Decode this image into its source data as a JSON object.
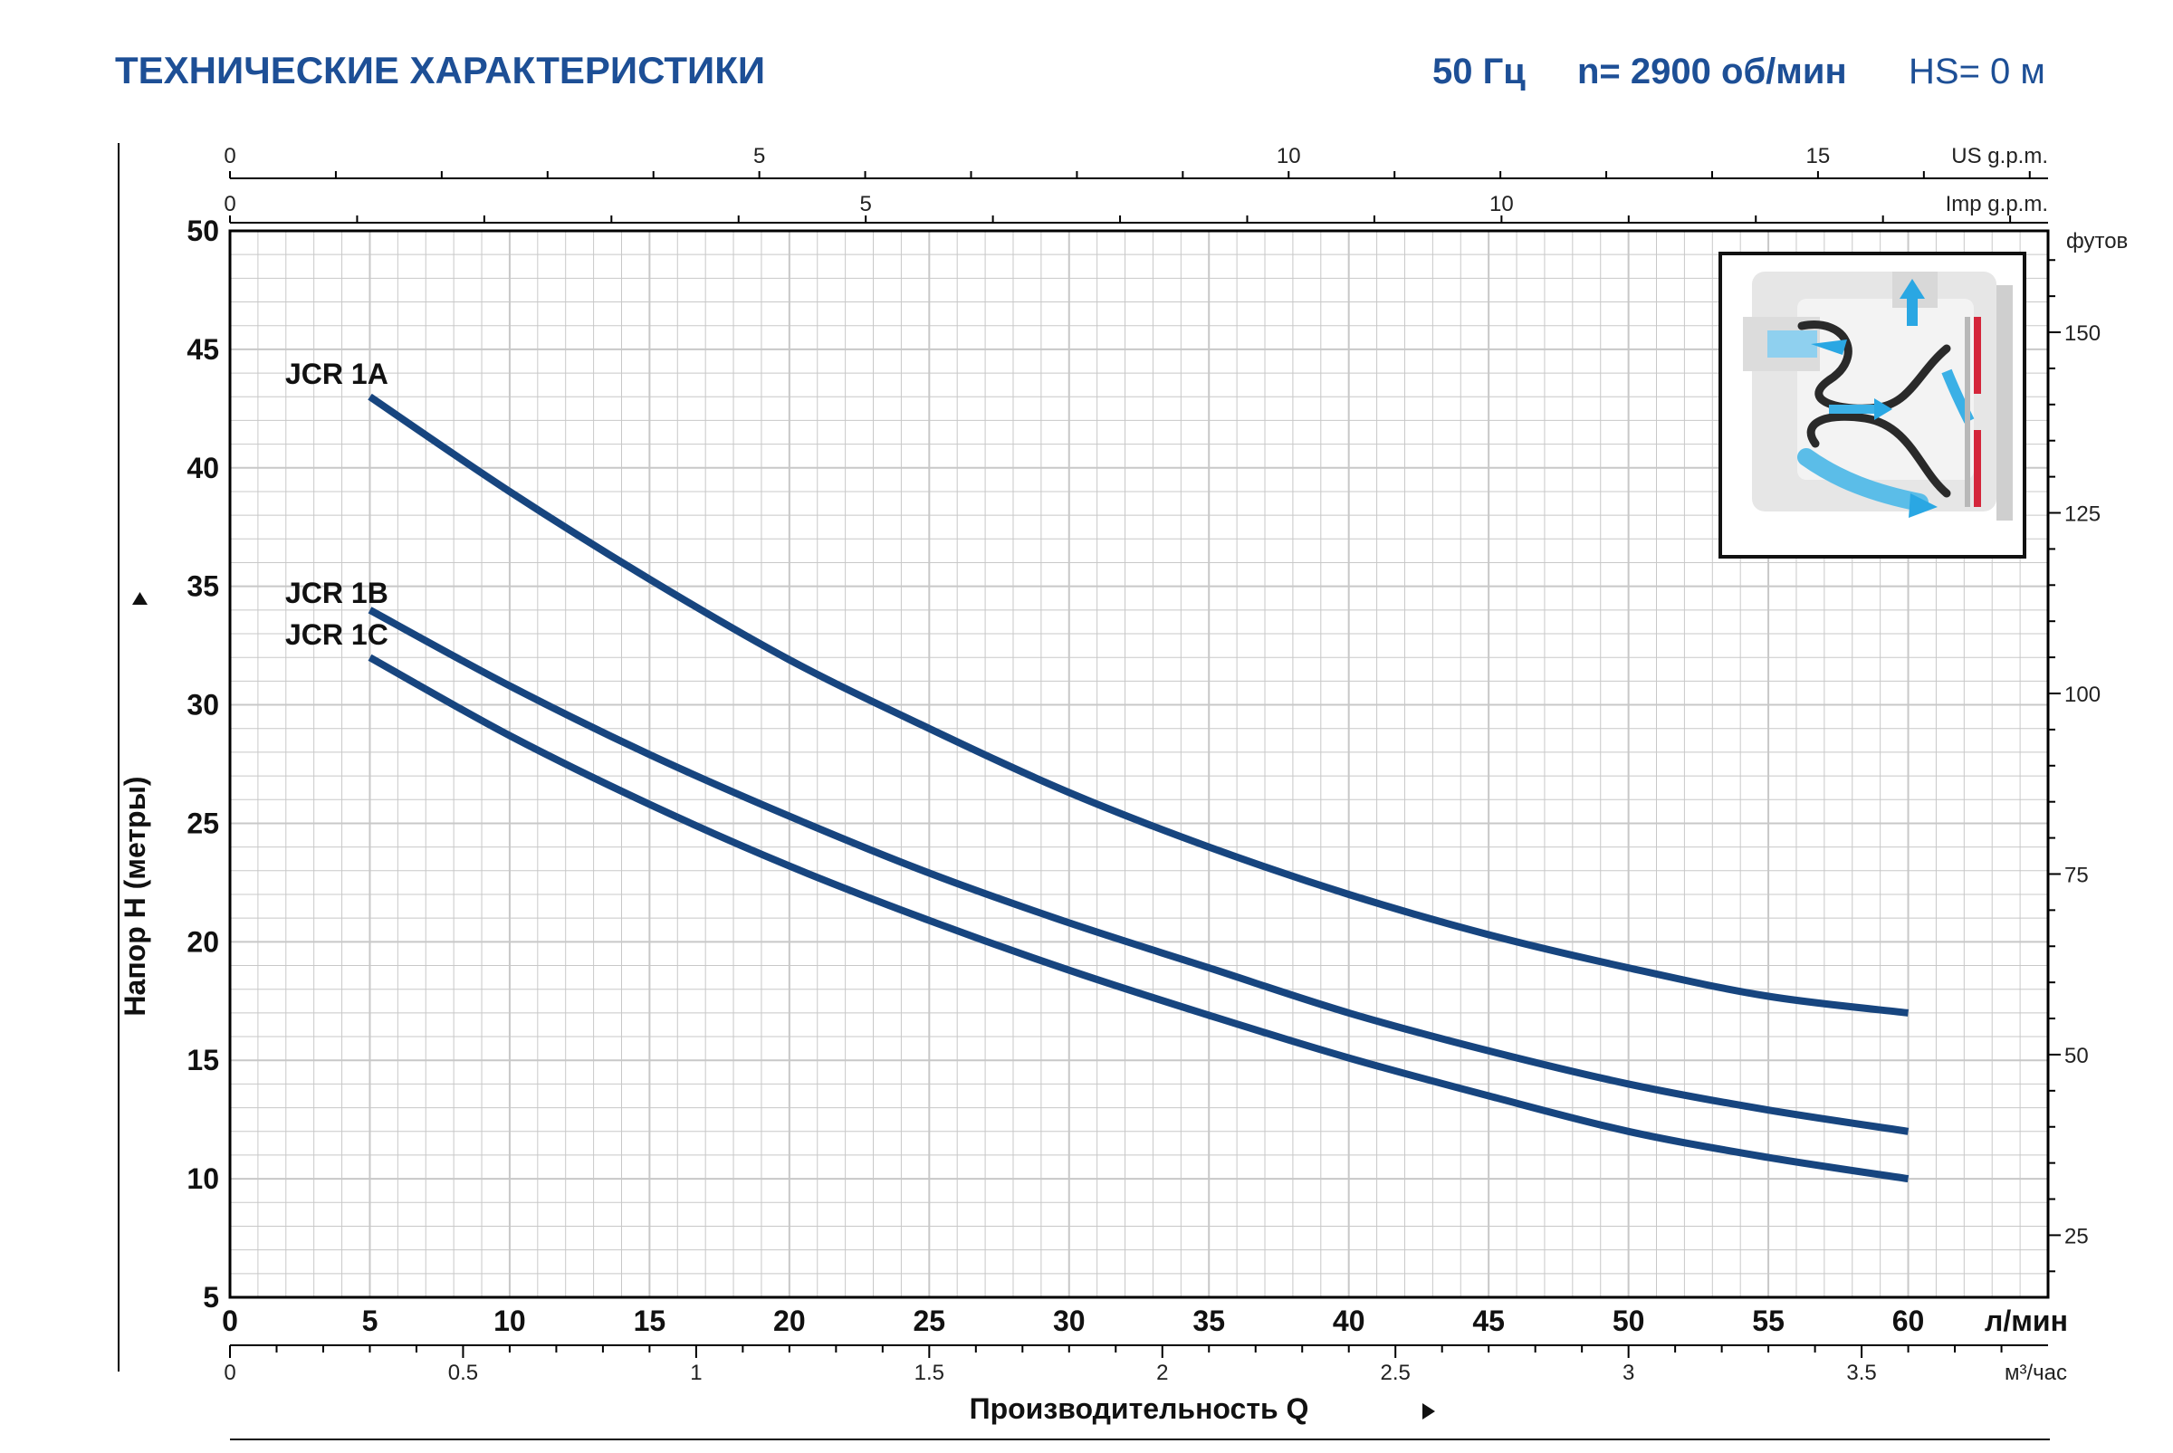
{
  "header": {
    "title": "ТЕХНИЧЕСКИЕ ХАРАКТЕРИСТИКИ",
    "frequency": "50 Гц",
    "speed": "n= 2900 об/мин",
    "suction": "HS= 0 м"
  },
  "colors": {
    "title": "#1d4f96",
    "curve": "#17457f",
    "grid": "#c8c8c8",
    "axis": "#000000"
  },
  "chart_data": {
    "type": "line",
    "title": "",
    "xlabel": "Производительность Q",
    "ylabel": "Напор H (метры)",
    "xunit": "л/мин",
    "xlim": [
      0,
      65
    ],
    "ylim": [
      5,
      50
    ],
    "xticks": [
      "0",
      "5",
      "10",
      "15",
      "20",
      "25",
      "30",
      "35",
      "40",
      "45",
      "50",
      "55",
      "60"
    ],
    "yticks": [
      "5",
      "10",
      "15",
      "20",
      "25",
      "30",
      "35",
      "40",
      "45",
      "50"
    ],
    "grid": true,
    "secondary_axes": {
      "us_gpm": {
        "unit": "US g.p.m.",
        "ticks": [
          "0",
          "5",
          "10",
          "15"
        ]
      },
      "imp_gpm": {
        "unit": "Imp g.p.m.",
        "ticks": [
          "0",
          "5",
          "10"
        ]
      },
      "m3h": {
        "unit": "м³/час",
        "ticks": [
          "0",
          "0.5",
          "1",
          "1.5",
          "2",
          "2.5",
          "3",
          "3.5"
        ]
      },
      "feet": {
        "unit": "футов",
        "ticks": [
          "25",
          "50",
          "75",
          "100",
          "125",
          "150"
        ]
      }
    },
    "series": [
      {
        "name": "JCR 1A",
        "x": [
          5,
          10,
          15,
          20,
          25,
          30,
          35,
          40,
          45,
          50,
          55,
          60
        ],
        "y": [
          43,
          39,
          35.3,
          31.9,
          29,
          26.3,
          24,
          22,
          20.3,
          18.9,
          17.7,
          17
        ]
      },
      {
        "name": "JCR 1B",
        "x": [
          5,
          10,
          15,
          20,
          25,
          30,
          35,
          40,
          45,
          50,
          55,
          60
        ],
        "y": [
          34,
          30.8,
          27.9,
          25.3,
          22.9,
          20.8,
          18.9,
          17,
          15.4,
          14,
          12.9,
          12
        ]
      },
      {
        "name": "JCR 1C",
        "x": [
          5,
          10,
          15,
          20,
          25,
          30,
          35,
          40,
          45,
          50,
          55,
          60
        ],
        "y": [
          32,
          28.7,
          25.8,
          23.2,
          20.9,
          18.8,
          16.9,
          15.1,
          13.5,
          12,
          10.9,
          10
        ]
      }
    ]
  }
}
